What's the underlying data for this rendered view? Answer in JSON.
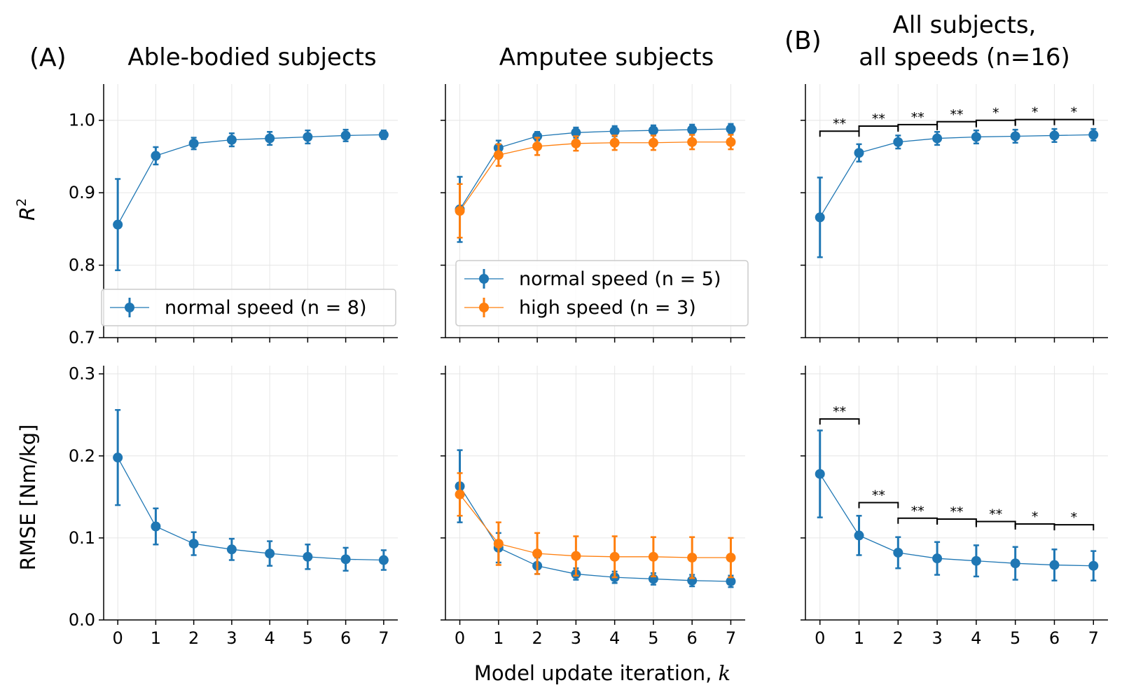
{
  "figure": {
    "letters": {
      "a": "(A)",
      "b": "(B)"
    },
    "titles": {
      "able": "Able-bodied subjects",
      "amputee": "Amputee subjects",
      "all_line1": "All subjects,",
      "all_line2": "all speeds (n=16)"
    },
    "ylabel_rmse": "RMSE [Nm/kg]",
    "ylabel_r2_base": "R",
    "ylabel_r2_sup": "2",
    "xlabel_text": "Model update iteration, ",
    "xlabel_var": "k",
    "colors": {
      "normal": "#1f77b4",
      "high": "#ff7f0e",
      "grid": "#e6e6e6",
      "axis": "#000000"
    }
  },
  "chart_data": [
    {
      "id": "r2_able",
      "type": "line",
      "title": "Able-bodied subjects",
      "ylabel": "R^2",
      "xlabel": "",
      "x": [
        0,
        1,
        2,
        3,
        4,
        5,
        6,
        7
      ],
      "ylim": [
        0.7,
        1.05
      ],
      "yticks": [
        0.7,
        0.8,
        0.9,
        1.0
      ],
      "grid": true,
      "legend": "lower-right",
      "series": [
        {
          "name": "normal speed (n = 8)",
          "color": "#1f77b4",
          "values": [
            0.856,
            0.951,
            0.968,
            0.973,
            0.975,
            0.977,
            0.979,
            0.98
          ],
          "err": [
            0.063,
            0.012,
            0.008,
            0.009,
            0.009,
            0.009,
            0.008,
            0.006
          ]
        }
      ]
    },
    {
      "id": "r2_amputee",
      "type": "line",
      "title": "Amputee subjects",
      "ylabel": "",
      "xlabel": "",
      "x": [
        0,
        1,
        2,
        3,
        4,
        5,
        6,
        7
      ],
      "ylim": [
        0.7,
        1.05
      ],
      "yticks": [
        0.7,
        0.8,
        0.9,
        1.0
      ],
      "grid": true,
      "legend": "lower-right",
      "series": [
        {
          "name": "normal speed (n = 5)",
          "color": "#1f77b4",
          "values": [
            0.877,
            0.962,
            0.978,
            0.983,
            0.985,
            0.986,
            0.987,
            0.988
          ],
          "err": [
            0.045,
            0.01,
            0.006,
            0.007,
            0.007,
            0.007,
            0.007,
            0.007
          ]
        },
        {
          "name": "high speed (n = 3)",
          "color": "#ff7f0e",
          "values": [
            0.875,
            0.952,
            0.964,
            0.968,
            0.969,
            0.969,
            0.97,
            0.97
          ],
          "err": [
            0.037,
            0.015,
            0.012,
            0.01,
            0.01,
            0.01,
            0.01,
            0.01
          ]
        }
      ]
    },
    {
      "id": "r2_all",
      "type": "line",
      "title": "All subjects, all speeds (n=16)",
      "ylabel": "",
      "xlabel": "",
      "x": [
        0,
        1,
        2,
        3,
        4,
        5,
        6,
        7
      ],
      "ylim": [
        0.7,
        1.05
      ],
      "yticks": [
        0.7,
        0.8,
        0.9,
        1.0
      ],
      "grid": true,
      "legend": "none",
      "series": [
        {
          "name": "all subjects",
          "color": "#1f77b4",
          "values": [
            0.866,
            0.955,
            0.97,
            0.975,
            0.977,
            0.978,
            0.979,
            0.98
          ],
          "err": [
            0.055,
            0.012,
            0.009,
            0.009,
            0.009,
            0.009,
            0.009,
            0.008
          ]
        }
      ],
      "significance": [
        {
          "from": 0,
          "to": 1,
          "y": 0.985,
          "label": "**"
        },
        {
          "from": 1,
          "to": 2,
          "y": 0.992,
          "label": "**"
        },
        {
          "from": 2,
          "to": 3,
          "y": 0.994,
          "label": "**"
        },
        {
          "from": 3,
          "to": 4,
          "y": 0.998,
          "label": "**"
        },
        {
          "from": 4,
          "to": 5,
          "y": 1.0,
          "label": "*"
        },
        {
          "from": 5,
          "to": 6,
          "y": 1.001,
          "label": "*"
        },
        {
          "from": 6,
          "to": 7,
          "y": 1.001,
          "label": "*"
        }
      ]
    },
    {
      "id": "rmse_able",
      "type": "line",
      "title": "",
      "ylabel": "RMSE [Nm/kg]",
      "xlabel": "",
      "x": [
        0,
        1,
        2,
        3,
        4,
        5,
        6,
        7
      ],
      "ylim": [
        0.0,
        0.31
      ],
      "yticks": [
        0.0,
        0.1,
        0.2,
        0.3
      ],
      "grid": true,
      "legend": "none",
      "series": [
        {
          "name": "normal speed (n = 8)",
          "color": "#1f77b4",
          "values": [
            0.198,
            0.114,
            0.093,
            0.086,
            0.081,
            0.077,
            0.074,
            0.073
          ],
          "err": [
            0.058,
            0.022,
            0.014,
            0.013,
            0.015,
            0.015,
            0.014,
            0.012
          ]
        }
      ]
    },
    {
      "id": "rmse_amputee",
      "type": "line",
      "title": "",
      "ylabel": "",
      "xlabel": "Model update iteration, k",
      "x": [
        0,
        1,
        2,
        3,
        4,
        5,
        6,
        7
      ],
      "ylim": [
        0.0,
        0.31
      ],
      "yticks": [
        0.0,
        0.1,
        0.2,
        0.3
      ],
      "grid": true,
      "legend": "none",
      "series": [
        {
          "name": "normal speed (n = 5)",
          "color": "#1f77b4",
          "values": [
            0.163,
            0.088,
            0.066,
            0.056,
            0.052,
            0.05,
            0.048,
            0.047
          ],
          "err": [
            0.044,
            0.018,
            0.01,
            0.007,
            0.007,
            0.007,
            0.007,
            0.007
          ]
        },
        {
          "name": "high speed (n = 3)",
          "color": "#ff7f0e",
          "values": [
            0.153,
            0.093,
            0.081,
            0.078,
            0.077,
            0.077,
            0.076,
            0.076
          ],
          "err": [
            0.026,
            0.026,
            0.025,
            0.024,
            0.025,
            0.024,
            0.025,
            0.024
          ]
        }
      ]
    },
    {
      "id": "rmse_all",
      "type": "line",
      "title": "",
      "ylabel": "",
      "xlabel": "",
      "x": [
        0,
        1,
        2,
        3,
        4,
        5,
        6,
        7
      ],
      "ylim": [
        0.0,
        0.31
      ],
      "yticks": [
        0.0,
        0.1,
        0.2,
        0.3
      ],
      "grid": true,
      "legend": "none",
      "series": [
        {
          "name": "all subjects",
          "color": "#1f77b4",
          "values": [
            0.178,
            0.103,
            0.082,
            0.075,
            0.072,
            0.069,
            0.067,
            0.066
          ],
          "err": [
            0.053,
            0.024,
            0.019,
            0.02,
            0.019,
            0.02,
            0.019,
            0.018
          ]
        }
      ],
      "significance": [
        {
          "from": 0,
          "to": 1,
          "y": 0.245,
          "label": "**"
        },
        {
          "from": 1,
          "to": 2,
          "y": 0.143,
          "label": "**"
        },
        {
          "from": 2,
          "to": 3,
          "y": 0.124,
          "label": "**"
        },
        {
          "from": 3,
          "to": 4,
          "y": 0.123,
          "label": "**"
        },
        {
          "from": 4,
          "to": 5,
          "y": 0.12,
          "label": "**"
        },
        {
          "from": 5,
          "to": 6,
          "y": 0.117,
          "label": "*"
        },
        {
          "from": 6,
          "to": 7,
          "y": 0.116,
          "label": "*"
        }
      ]
    }
  ]
}
